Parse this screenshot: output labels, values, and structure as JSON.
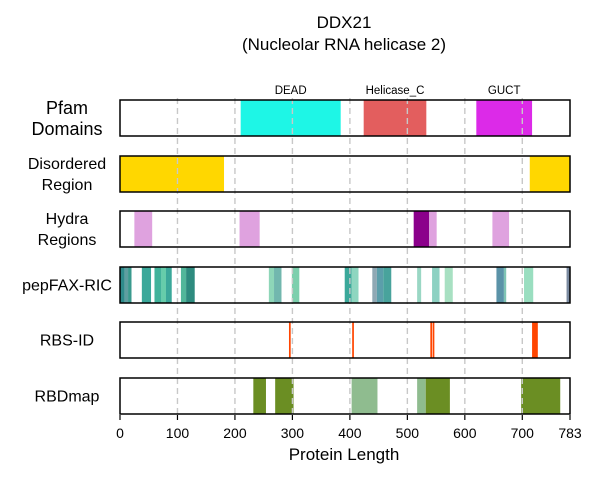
{
  "chart_data": {
    "type": "bar",
    "title": "DDX21",
    "subtitle": "(Nucleolar RNA helicase 2)",
    "xlabel": "Protein Length",
    "xlim": [
      0,
      783
    ],
    "xticks": [
      0,
      100,
      200,
      300,
      400,
      500,
      600,
      700,
      783
    ],
    "grid": "vertical dashed",
    "rows": [
      {
        "label": [
          "Pfam",
          "Domains"
        ],
        "segments": [
          {
            "name": "DEAD",
            "start": 210,
            "end": 384,
            "color": "#1EF6E6"
          },
          {
            "name": "Helicase_C",
            "start": 424,
            "end": 533,
            "color": "#E35E5E"
          },
          {
            "name": "GUCT",
            "start": 620,
            "end": 717,
            "color": "#DC2AE8"
          }
        ]
      },
      {
        "label": [
          "Disordered",
          "Region"
        ],
        "segments": [
          {
            "start": 0,
            "end": 181,
            "color": "#FFD700"
          },
          {
            "start": 713,
            "end": 783,
            "color": "#FFD700"
          }
        ]
      },
      {
        "label": [
          "Hydra",
          "Regions"
        ],
        "segments": [
          {
            "start": 25,
            "end": 56,
            "color": "#DFA2DF"
          },
          {
            "start": 208,
            "end": 243,
            "color": "#DFA2DF"
          },
          {
            "start": 511,
            "end": 538,
            "color": "#8B008B"
          },
          {
            "start": 538,
            "end": 551,
            "color": "#DFA2DF"
          },
          {
            "start": 648,
            "end": 677,
            "color": "#DFA2DF"
          }
        ]
      },
      {
        "label": [
          "pepFAX-RIC"
        ],
        "segments": [
          {
            "start": 0,
            "end": 8,
            "color": "#2E8B8B"
          },
          {
            "start": 8,
            "end": 14,
            "color": "#5F9EA0"
          },
          {
            "start": 14,
            "end": 20,
            "color": "#3A9A8E"
          },
          {
            "start": 38,
            "end": 54,
            "color": "#3BA89A"
          },
          {
            "start": 60,
            "end": 72,
            "color": "#42B39B"
          },
          {
            "start": 72,
            "end": 80,
            "color": "#66CDAA"
          },
          {
            "start": 80,
            "end": 90,
            "color": "#3BA89A"
          },
          {
            "start": 106,
            "end": 115,
            "color": "#52B69A"
          },
          {
            "start": 115,
            "end": 130,
            "color": "#2E8B7F"
          },
          {
            "start": 259,
            "end": 268,
            "color": "#8ED6B8"
          },
          {
            "start": 268,
            "end": 281,
            "color": "#72B7AE"
          },
          {
            "start": 299,
            "end": 312,
            "color": "#7CCFAD"
          },
          {
            "start": 391,
            "end": 403,
            "color": "#3BA89A"
          },
          {
            "start": 403,
            "end": 415,
            "color": "#8ED6C0"
          },
          {
            "start": 439,
            "end": 447,
            "color": "#8FA8B4"
          },
          {
            "start": 447,
            "end": 458,
            "color": "#5B9EAA"
          },
          {
            "start": 458,
            "end": 472,
            "color": "#48A39C"
          },
          {
            "start": 517,
            "end": 524,
            "color": "#9AD7C4"
          },
          {
            "start": 543,
            "end": 556,
            "color": "#8DD1C2"
          },
          {
            "start": 565,
            "end": 579,
            "color": "#A8E0C2"
          },
          {
            "start": 655,
            "end": 668,
            "color": "#5B93A8"
          },
          {
            "start": 668,
            "end": 672,
            "color": "#7FC4B4"
          },
          {
            "start": 703,
            "end": 719,
            "color": "#9ADEC0"
          },
          {
            "start": 777,
            "end": 783,
            "color": "#7A8AA0"
          }
        ]
      },
      {
        "label": [
          "RBS-ID"
        ],
        "segments": [
          {
            "start": 294,
            "end": 297,
            "color": "#FF4500"
          },
          {
            "start": 404,
            "end": 407,
            "color": "#FF4500"
          },
          {
            "start": 540,
            "end": 543,
            "color": "#FF4500"
          },
          {
            "start": 544,
            "end": 547,
            "color": "#FF4500"
          },
          {
            "start": 717,
            "end": 727,
            "color": "#FF4500"
          }
        ]
      },
      {
        "label": [
          "RBDmap"
        ],
        "segments": [
          {
            "start": 232,
            "end": 254,
            "color": "#6B8E23"
          },
          {
            "start": 270,
            "end": 302,
            "color": "#6B8E23"
          },
          {
            "start": 403,
            "end": 448,
            "color": "#8FBC8F"
          },
          {
            "start": 517,
            "end": 532,
            "color": "#8FBC8F"
          },
          {
            "start": 532,
            "end": 574,
            "color": "#6B8E23"
          },
          {
            "start": 698,
            "end": 766,
            "color": "#6B8E23"
          }
        ]
      }
    ]
  }
}
